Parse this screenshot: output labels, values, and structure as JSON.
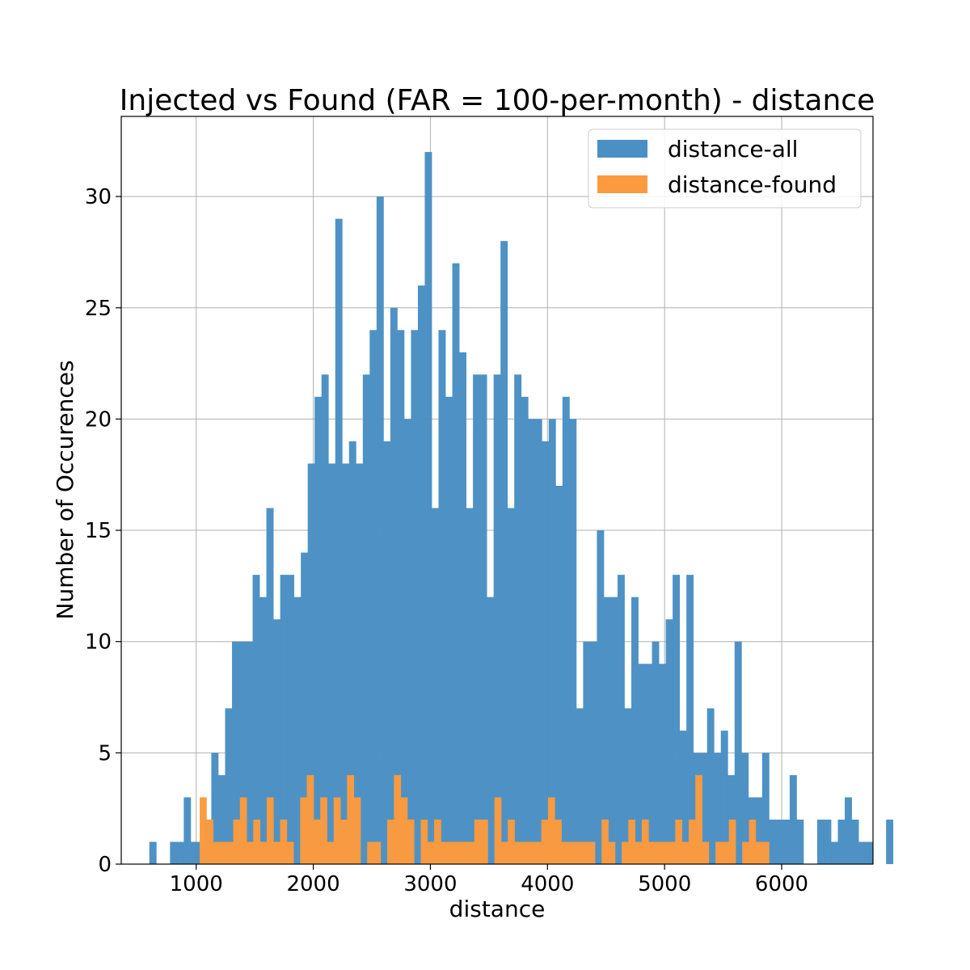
{
  "chart_data": {
    "type": "bar",
    "title": "Injected vs Found (FAR = 100-per-month) - distance",
    "xlabel": "distance",
    "ylabel": "Number of Occurences",
    "xlim": [
      360,
      6780
    ],
    "ylim": [
      0,
      33.6
    ],
    "xticks": [
      1000,
      2000,
      3000,
      4000,
      5000,
      6000
    ],
    "yticks": [
      0,
      5,
      10,
      15,
      20,
      25,
      30
    ],
    "grid": true,
    "legend": "top-right",
    "bin_start": 600,
    "bin_width": 58.8,
    "series": [
      {
        "name": "distance-all",
        "color": "#4a90c4",
        "counts": [
          1,
          0,
          0,
          1,
          1,
          3,
          1,
          1,
          2,
          5,
          4,
          7,
          10,
          10,
          10,
          13,
          12,
          16,
          11,
          13,
          13,
          12,
          14,
          18,
          21,
          22,
          18,
          29,
          18,
          19,
          18,
          22,
          24,
          30,
          19,
          25,
          24,
          20,
          24,
          26,
          32,
          16,
          24,
          21,
          27,
          23,
          16,
          22,
          22,
          12,
          22,
          28,
          16,
          22,
          21,
          20,
          20,
          19,
          20,
          17,
          21,
          20,
          7,
          10,
          10,
          15,
          12,
          12,
          13,
          7,
          12,
          9,
          9,
          10,
          9,
          11,
          13,
          6,
          13,
          5,
          5,
          7,
          5,
          6,
          4,
          10,
          5,
          3,
          3,
          5,
          2,
          2,
          2,
          4,
          2,
          0,
          0,
          2,
          2,
          1,
          2,
          3,
          2,
          1,
          1,
          0,
          0,
          2
        ]
      },
      {
        "name": "distance-found",
        "color": "#fb9a3e",
        "counts": [
          3,
          2,
          1,
          1,
          1,
          2,
          3,
          1,
          2,
          1,
          3,
          1,
          2,
          1,
          0,
          3,
          4,
          2,
          3,
          1,
          3,
          2,
          4,
          3,
          0,
          1,
          1,
          0,
          2,
          4,
          3,
          2,
          0,
          2,
          1,
          2,
          1,
          1,
          1,
          1,
          1,
          2,
          2,
          0,
          3,
          1,
          2,
          1,
          1,
          1,
          1,
          2,
          3,
          2,
          1,
          1,
          1,
          1,
          1,
          0,
          2,
          1,
          0,
          1,
          2,
          1,
          2,
          1,
          1,
          1,
          1,
          2,
          1,
          2,
          4,
          1,
          0,
          1,
          1,
          2,
          0,
          1,
          2,
          1,
          1
        ]
      }
    ],
    "found_bin_start": 1030,
    "found_bin_width": 57.2
  }
}
